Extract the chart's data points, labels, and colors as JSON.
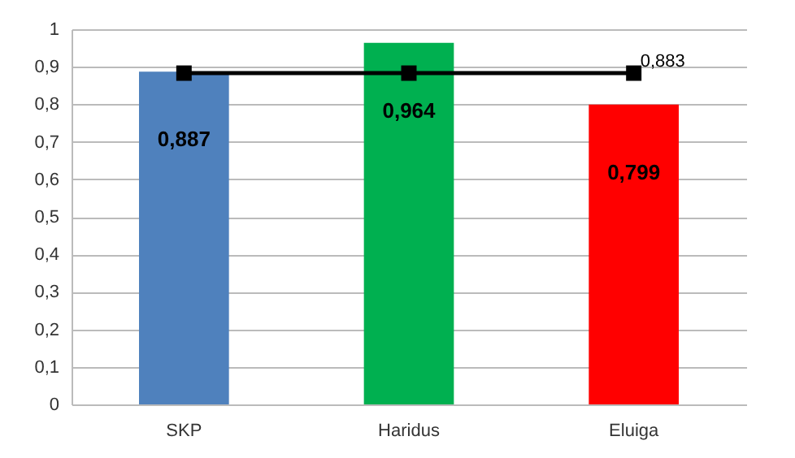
{
  "chart_data": {
    "type": "bar",
    "categories": [
      "SKP",
      "Haridus",
      "Eluiga"
    ],
    "series": [
      {
        "colors": [
          "#4f81bd",
          "#00b050",
          "#ff0000"
        ],
        "values": [
          0.887,
          0.964,
          0.799
        ],
        "value_labels": [
          "0,887",
          "0,964",
          "0,799"
        ]
      },
      {
        "type": "line",
        "color": "#000000",
        "values": [
          0.883,
          0.883,
          0.883
        ],
        "value_labels": [
          null,
          null,
          "0,883"
        ],
        "marker": "square"
      }
    ],
    "ylim": [
      0,
      1
    ],
    "yticks": [
      0,
      {
        "value": 0.1,
        "label": "0,1"
      },
      {
        "value": 0.2,
        "label": "0,2"
      },
      {
        "value": 0.3,
        "label": "0,3"
      },
      {
        "value": 0.4,
        "label": "0,4"
      },
      {
        "value": 0.5,
        "label": "0,5"
      },
      {
        "value": 0.6,
        "label": "0,6"
      },
      {
        "value": 0.7,
        "label": "0,7"
      },
      {
        "value": 0.8,
        "label": "0,8"
      },
      {
        "value": 0.9,
        "label": "0,9"
      },
      1
    ],
    "grid": "y"
  }
}
